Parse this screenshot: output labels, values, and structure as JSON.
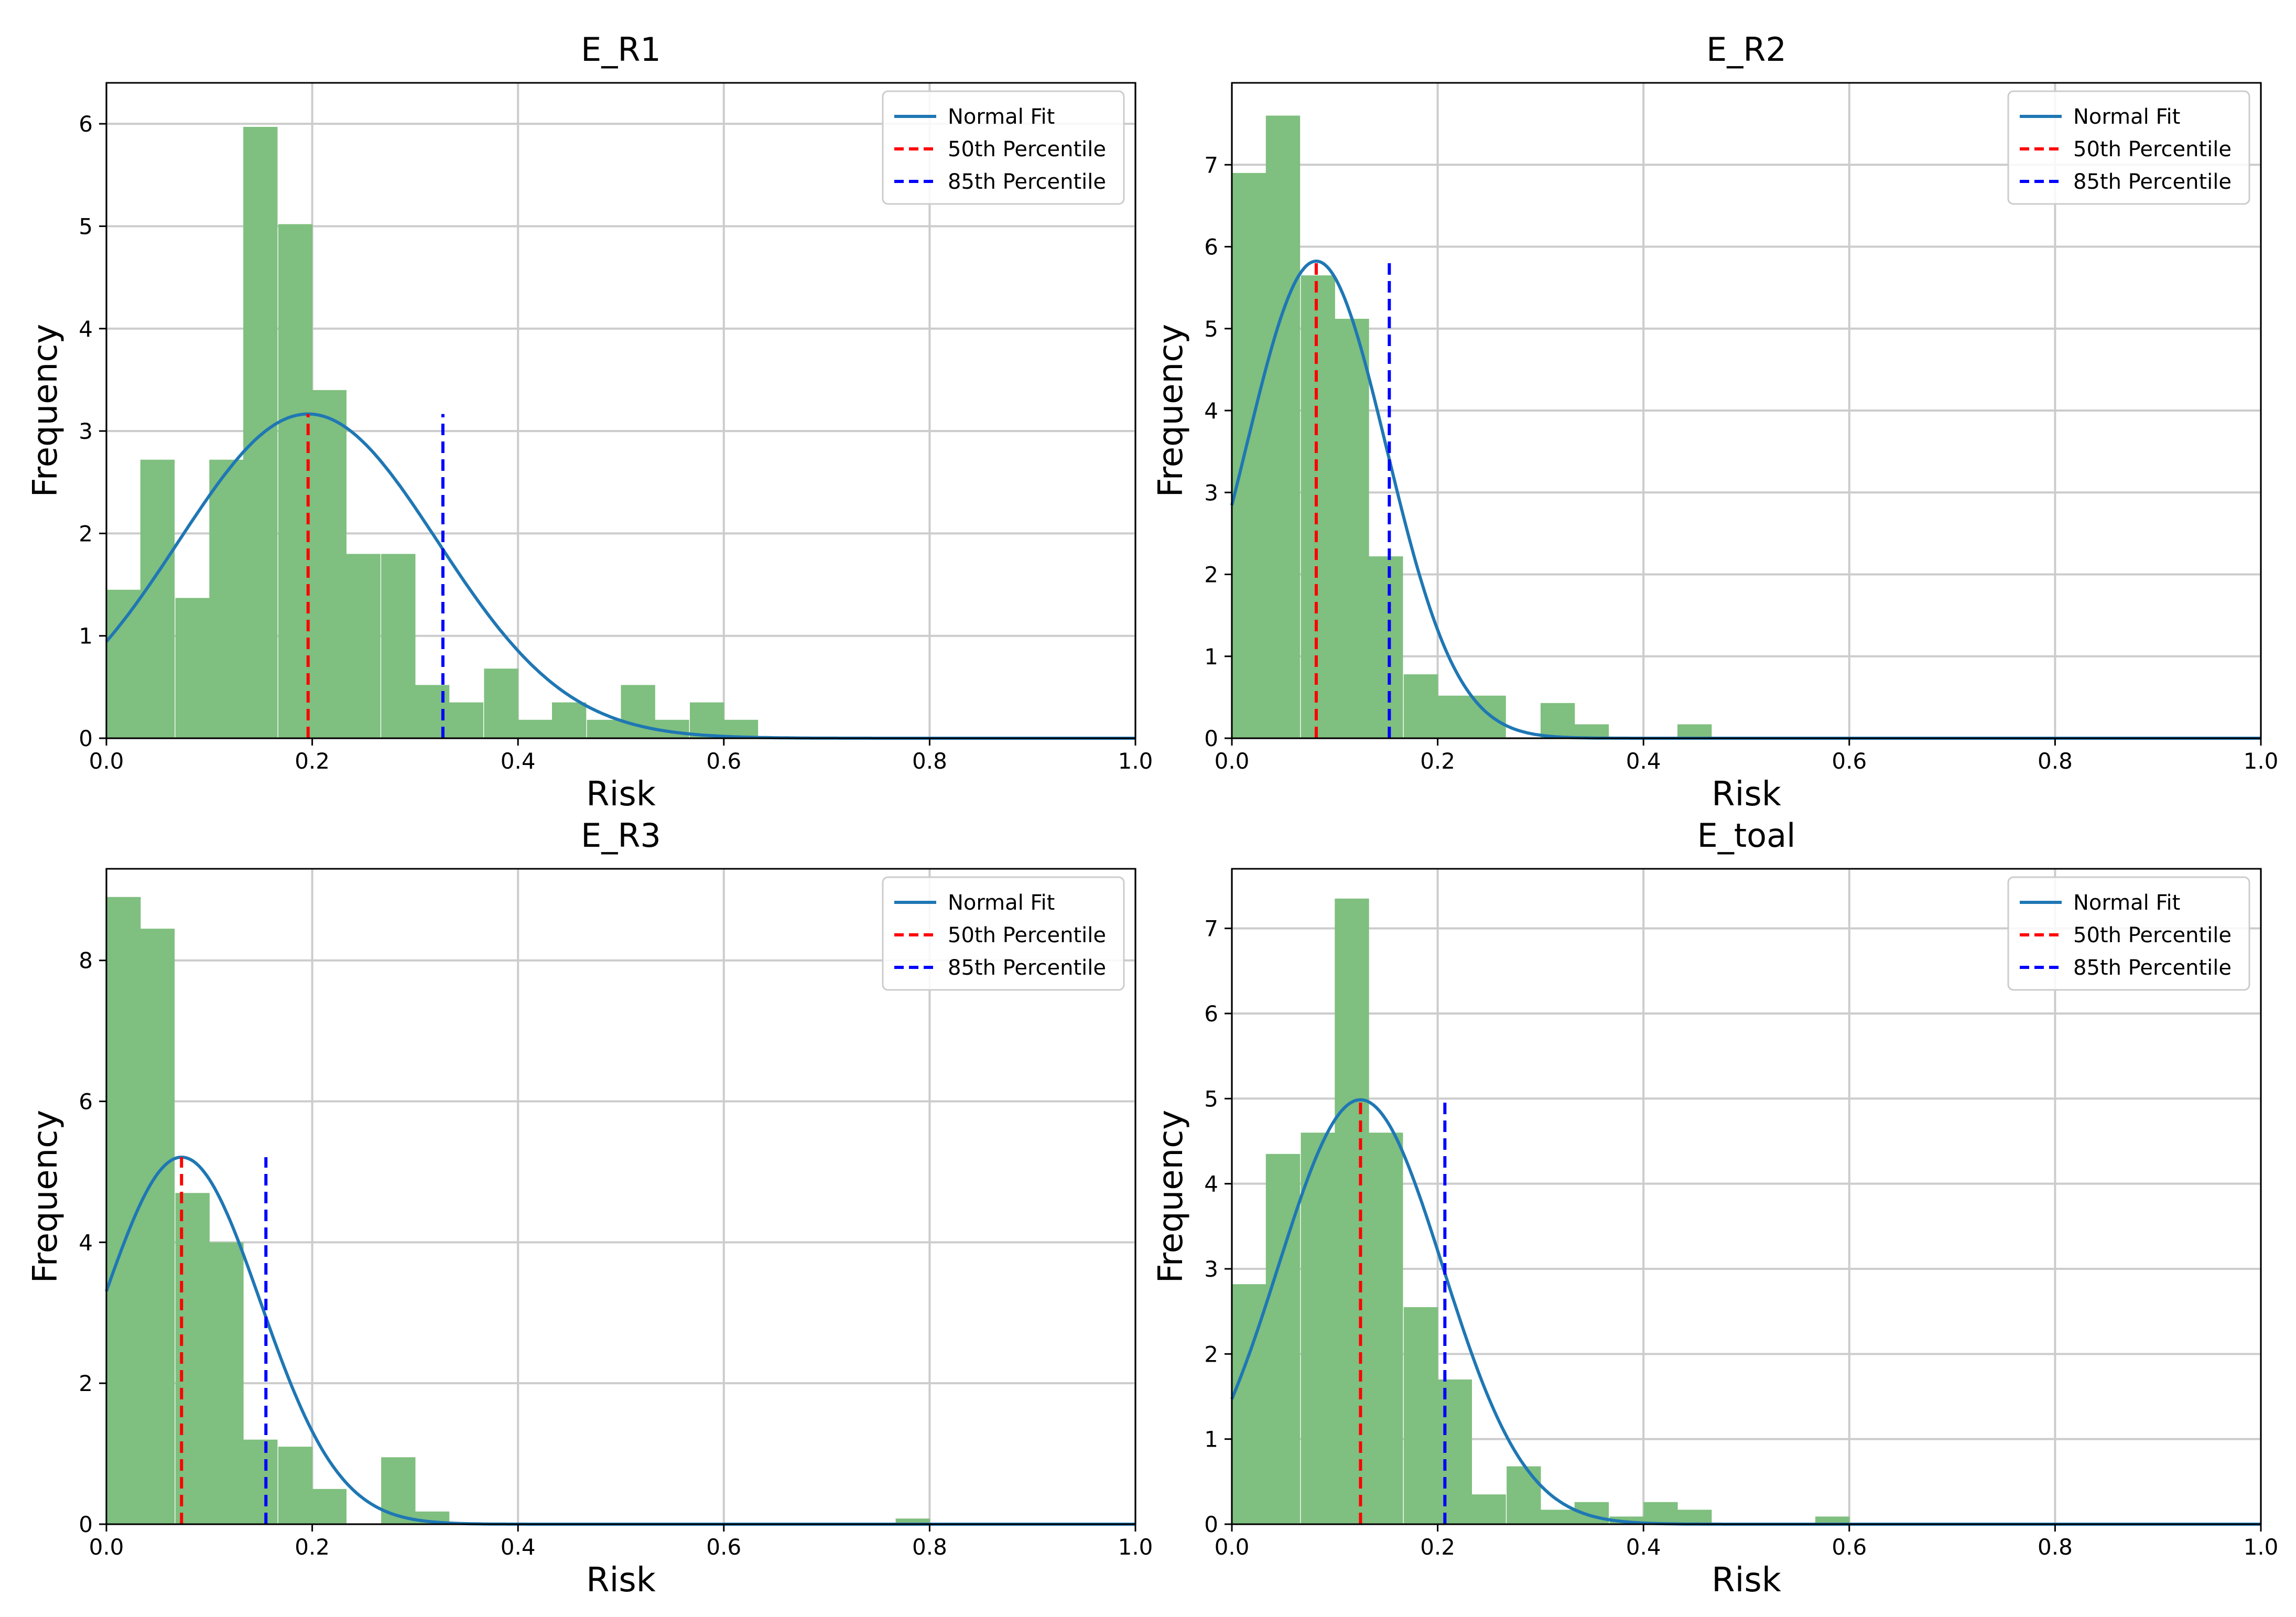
{
  "chart_data": [
    {
      "type": "histogram",
      "title": "E_R1",
      "xlabel": "Risk",
      "ylabel": "Frequency",
      "xlim": [
        0,
        1
      ],
      "ylim": [
        0,
        6.4
      ],
      "xticks": [
        "0.0",
        "0.2",
        "0.4",
        "0.6",
        "0.8",
        "1.0"
      ],
      "yticks": [
        "0",
        "1",
        "2",
        "3",
        "4",
        "5",
        "6"
      ],
      "grid": true,
      "legend_position": "top-right",
      "legend": [
        "Normal Fit",
        "50th Percentile",
        "85th Percentile"
      ],
      "colors": {
        "bars": "#7fbf7f",
        "fit": "#1f77b4",
        "p50": "#ff0000",
        "p85": "#0000ff",
        "grid": "#cccccc"
      },
      "bin_width": 0.0333,
      "bins": [
        {
          "x0": 0.0,
          "value": 1.45
        },
        {
          "x0": 0.033,
          "value": 2.72
        },
        {
          "x0": 0.067,
          "value": 1.37
        },
        {
          "x0": 0.1,
          "value": 2.72
        },
        {
          "x0": 0.133,
          "value": 5.97
        },
        {
          "x0": 0.167,
          "value": 5.02
        },
        {
          "x0": 0.2,
          "value": 3.4
        },
        {
          "x0": 0.233,
          "value": 1.8
        },
        {
          "x0": 0.267,
          "value": 1.8
        },
        {
          "x0": 0.3,
          "value": 0.52
        },
        {
          "x0": 0.333,
          "value": 0.35
        },
        {
          "x0": 0.367,
          "value": 0.68
        },
        {
          "x0": 0.4,
          "value": 0.18
        },
        {
          "x0": 0.433,
          "value": 0.35
        },
        {
          "x0": 0.467,
          "value": 0.18
        },
        {
          "x0": 0.5,
          "value": 0.52
        },
        {
          "x0": 0.533,
          "value": 0.18
        },
        {
          "x0": 0.567,
          "value": 0.35
        },
        {
          "x0": 0.6,
          "value": 0.18
        }
      ],
      "normal_fit": {
        "mean": 0.196,
        "std": 0.126
      },
      "p50": 0.196,
      "p85": 0.327
    },
    {
      "type": "histogram",
      "title": "E_R2",
      "xlabel": "Risk",
      "ylabel": "Frequency",
      "xlim": [
        0,
        1
      ],
      "ylim": [
        0,
        8.0
      ],
      "xticks": [
        "0.0",
        "0.2",
        "0.4",
        "0.6",
        "0.8",
        "1.0"
      ],
      "yticks": [
        "0",
        "1",
        "2",
        "3",
        "4",
        "5",
        "6",
        "7"
      ],
      "grid": true,
      "legend_position": "top-right",
      "legend": [
        "Normal Fit",
        "50th Percentile",
        "85th Percentile"
      ],
      "colors": {
        "bars": "#7fbf7f",
        "fit": "#1f77b4",
        "p50": "#ff0000",
        "p85": "#0000ff",
        "grid": "#cccccc"
      },
      "bin_width": 0.0333,
      "bins": [
        {
          "x0": 0.0,
          "value": 6.9
        },
        {
          "x0": 0.033,
          "value": 7.6
        },
        {
          "x0": 0.067,
          "value": 5.65
        },
        {
          "x0": 0.1,
          "value": 5.12
        },
        {
          "x0": 0.133,
          "value": 2.22
        },
        {
          "x0": 0.167,
          "value": 0.78
        },
        {
          "x0": 0.2,
          "value": 0.52
        },
        {
          "x0": 0.233,
          "value": 0.52
        },
        {
          "x0": 0.267,
          "value": 0.0
        },
        {
          "x0": 0.3,
          "value": 0.43
        },
        {
          "x0": 0.333,
          "value": 0.17
        },
        {
          "x0": 0.367,
          "value": 0.0
        },
        {
          "x0": 0.4,
          "value": 0.0
        },
        {
          "x0": 0.433,
          "value": 0.17
        }
      ],
      "normal_fit": {
        "mean": 0.082,
        "std": 0.0685
      },
      "p50": 0.082,
      "p85": 0.153
    },
    {
      "type": "histogram",
      "title": "E_R3",
      "xlabel": "Risk",
      "ylabel": "Frequency",
      "xlim": [
        0,
        1
      ],
      "ylim": [
        0,
        9.3
      ],
      "xticks": [
        "0.0",
        "0.2",
        "0.4",
        "0.6",
        "0.8",
        "1.0"
      ],
      "yticks": [
        "0",
        "2",
        "4",
        "6",
        "8"
      ],
      "grid": true,
      "legend_position": "top-right",
      "legend": [
        "Normal Fit",
        "50th Percentile",
        "85th Percentile"
      ],
      "colors": {
        "bars": "#7fbf7f",
        "fit": "#1f77b4",
        "p50": "#ff0000",
        "p85": "#0000ff",
        "grid": "#cccccc"
      },
      "bin_width": 0.0333,
      "bins": [
        {
          "x0": 0.0,
          "value": 8.9
        },
        {
          "x0": 0.033,
          "value": 8.45
        },
        {
          "x0": 0.067,
          "value": 4.7
        },
        {
          "x0": 0.1,
          "value": 4.0
        },
        {
          "x0": 0.133,
          "value": 1.2
        },
        {
          "x0": 0.167,
          "value": 1.1
        },
        {
          "x0": 0.2,
          "value": 0.5
        },
        {
          "x0": 0.233,
          "value": 0.0
        },
        {
          "x0": 0.267,
          "value": 0.95
        },
        {
          "x0": 0.3,
          "value": 0.18
        },
        {
          "x0": 0.767,
          "value": 0.08
        }
      ],
      "normal_fit": {
        "mean": 0.073,
        "std": 0.0766
      },
      "p50": 0.073,
      "p85": 0.155
    },
    {
      "type": "histogram",
      "title": "E_toal",
      "xlabel": "Risk",
      "ylabel": "Frequency",
      "xlim": [
        0,
        1
      ],
      "ylim": [
        0,
        7.7
      ],
      "xticks": [
        "0.0",
        "0.2",
        "0.4",
        "0.6",
        "0.8",
        "1.0"
      ],
      "yticks": [
        "0",
        "1",
        "2",
        "3",
        "4",
        "5",
        "6",
        "7"
      ],
      "grid": true,
      "legend_position": "top-right",
      "legend": [
        "Normal Fit",
        "50th Percentile",
        "85th Percentile"
      ],
      "colors": {
        "bars": "#7fbf7f",
        "fit": "#1f77b4",
        "p50": "#ff0000",
        "p85": "#0000ff",
        "grid": "#cccccc"
      },
      "bin_width": 0.0333,
      "bins": [
        {
          "x0": 0.0,
          "value": 2.82
        },
        {
          "x0": 0.033,
          "value": 4.35
        },
        {
          "x0": 0.067,
          "value": 4.6
        },
        {
          "x0": 0.1,
          "value": 7.35
        },
        {
          "x0": 0.133,
          "value": 4.6
        },
        {
          "x0": 0.167,
          "value": 2.55
        },
        {
          "x0": 0.2,
          "value": 1.7
        },
        {
          "x0": 0.233,
          "value": 0.35
        },
        {
          "x0": 0.267,
          "value": 0.68
        },
        {
          "x0": 0.3,
          "value": 0.17
        },
        {
          "x0": 0.333,
          "value": 0.26
        },
        {
          "x0": 0.367,
          "value": 0.09
        },
        {
          "x0": 0.4,
          "value": 0.26
        },
        {
          "x0": 0.433,
          "value": 0.17
        },
        {
          "x0": 0.567,
          "value": 0.09
        }
      ],
      "normal_fit": {
        "mean": 0.125,
        "std": 0.08
      },
      "p50": 0.125,
      "p85": 0.207
    }
  ]
}
